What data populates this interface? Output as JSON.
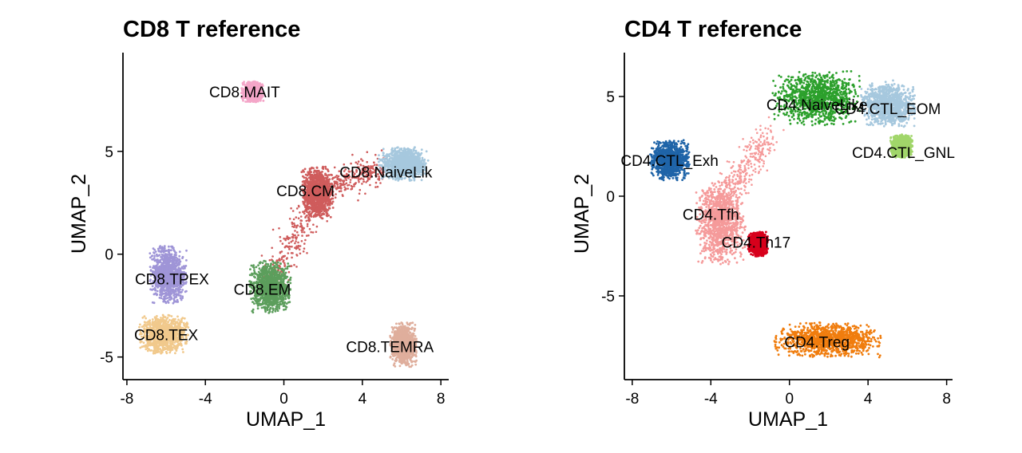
{
  "chart_data": [
    {
      "type": "scatter",
      "title": "CD8 T reference",
      "xlabel": "UMAP_1",
      "ylabel": "UMAP_2",
      "xlim": [
        -8.2,
        8.4
      ],
      "ylim": [
        -6.1,
        9.8
      ],
      "x_ticks": [
        -8,
        -4,
        0,
        4,
        8
      ],
      "x_tick_labels": [
        "-8",
        "-4",
        "0",
        "4",
        "8"
      ],
      "y_ticks": [
        -5,
        0,
        5
      ],
      "y_tick_labels": [
        "-5",
        "0",
        "5"
      ],
      "grid": false,
      "legend": "none",
      "clusters": [
        {
          "name": "CD8.MAIT",
          "color": "#f4a6c8",
          "center": [
            -1.6,
            7.9
          ],
          "spread": [
            0.45,
            0.4
          ],
          "label_at": [
            -2.0,
            7.9
          ]
        },
        {
          "name": "CD8.NaiveLike",
          "label": "CD8.NaiveLik",
          "color": "#a6c8de",
          "center": [
            6.1,
            4.4
          ],
          "spread": [
            1.0,
            0.65
          ],
          "label_at": [
            5.2,
            4.0
          ]
        },
        {
          "name": "CD8.CM",
          "color": "#cf5c5c",
          "center": [
            1.7,
            3.0
          ],
          "spread": [
            0.65,
            1.0
          ],
          "label_at": [
            1.1,
            3.1
          ]
        },
        {
          "name": "CD8.EM",
          "color": "#5c9e5c",
          "center": [
            -0.7,
            -1.6
          ],
          "spread": [
            0.85,
            1.0
          ],
          "label_at": [
            -1.1,
            -1.7
          ]
        },
        {
          "name": "CD8.TPEX",
          "color": "#9f95d7",
          "center": [
            -5.9,
            -1.0
          ],
          "spread": [
            0.75,
            1.1
          ],
          "label_at": [
            -5.7,
            -1.2
          ]
        },
        {
          "name": "CD8.TEX",
          "color": "#f1c98c",
          "center": [
            -6.1,
            -3.9
          ],
          "spread": [
            1.0,
            0.75
          ],
          "label_at": [
            -6.0,
            -3.9
          ]
        },
        {
          "name": "CD8.TEMRA",
          "label": "CD8.TEMRA",
          "color": "#dfae9c",
          "center": [
            6.1,
            -4.4
          ],
          "spread": [
            0.55,
            0.85
          ],
          "label_at": [
            5.4,
            -4.5
          ]
        }
      ],
      "bridges": [
        {
          "from": [
            -0.6,
            -1.2
          ],
          "to": [
            1.8,
            2.8
          ],
          "color": "#cf5c5c"
        },
        {
          "from": [
            2.3,
            3.3
          ],
          "to": [
            5.2,
            4.3
          ],
          "color": "#cf5c5c"
        }
      ]
    },
    {
      "type": "scatter",
      "title": "CD4 T reference",
      "xlabel": "UMAP_1",
      "ylabel": "UMAP_2",
      "xlim": [
        -8.4,
        8.3
      ],
      "ylim": [
        -9.2,
        7.2
      ],
      "x_ticks": [
        -8,
        -4,
        0,
        4,
        8
      ],
      "x_tick_labels": [
        "-8",
        "-4",
        "0",
        "4",
        "8"
      ],
      "y_ticks": [
        -5,
        0,
        5
      ],
      "y_tick_labels": [
        "-5",
        "0",
        "5"
      ],
      "grid": false,
      "legend": "none",
      "clusters": [
        {
          "name": "CD4.NaiveLike",
          "label": "CD4.NaiveLike",
          "color": "#2ca02c",
          "center": [
            1.4,
            4.9
          ],
          "spread": [
            1.8,
            1.1
          ],
          "label_at": [
            1.4,
            4.6
          ]
        },
        {
          "name": "CD4.CTL_EOMES",
          "label": "CD4.CTL_EOM",
          "color": "#a6c8de",
          "center": [
            5.0,
            4.6
          ],
          "spread": [
            1.1,
            0.9
          ],
          "label_at": [
            5.0,
            4.4
          ]
        },
        {
          "name": "CD4.CTL_GNLY",
          "label": "CD4.CTL_GNL",
          "color": "#a1d66a",
          "center": [
            5.7,
            2.5
          ],
          "spread": [
            0.45,
            0.45
          ],
          "label_at": [
            5.8,
            2.2
          ]
        },
        {
          "name": "CD4.CTL_Exh",
          "label": "CD4.CTL_Exh",
          "color": "#1f64a8",
          "center": [
            -6.1,
            1.8
          ],
          "spread": [
            0.8,
            0.8
          ],
          "label_at": [
            -6.1,
            1.8
          ]
        },
        {
          "name": "CD4.Tfh",
          "label": "CD4.Tfh",
          "color": "#f59a9a",
          "center": [
            -3.5,
            -1.3
          ],
          "spread": [
            1.0,
            1.7
          ],
          "label_at": [
            -4.0,
            -0.9
          ]
        },
        {
          "name": "CD4.Th17",
          "label": "CD4.Th17",
          "color": "#d7001c",
          "center": [
            -1.6,
            -2.4
          ],
          "spread": [
            0.4,
            0.5
          ],
          "label_at": [
            -1.7,
            -2.3
          ]
        },
        {
          "name": "CD4.Treg",
          "label": "CD4.Treg",
          "color": "#f07d0e",
          "center": [
            2.0,
            -7.2
          ],
          "spread": [
            2.2,
            0.7
          ],
          "label_at": [
            1.4,
            -7.3
          ]
        }
      ],
      "bridges": [
        {
          "from": [
            -3.2,
            -0.1
          ],
          "to": [
            -1.0,
            3.2
          ],
          "color": "#f59a9a"
        }
      ]
    }
  ]
}
